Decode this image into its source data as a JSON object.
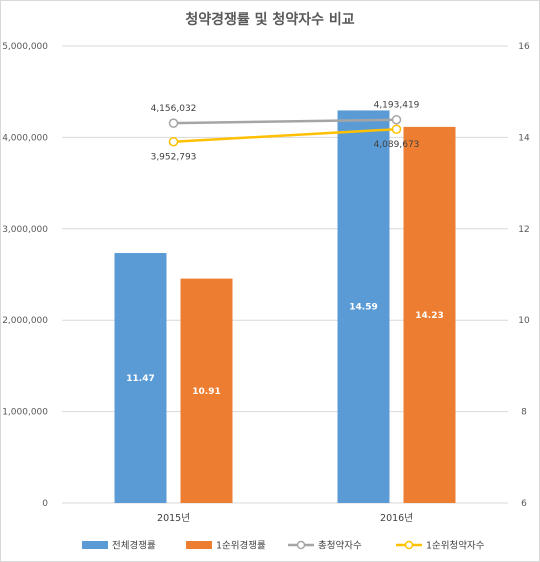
{
  "chart_data": {
    "type": "bar",
    "title": "청약경쟁률 및 청약자수 비교",
    "categories": [
      "2015년",
      "2016년"
    ],
    "y_left": {
      "ylim": [
        0,
        5000000
      ],
      "ticks": [
        0,
        1000000,
        2000000,
        3000000,
        4000000,
        5000000
      ],
      "tick_labels": [
        "0",
        "1,000,000",
        "2,000,000",
        "3,000,000",
        "4,000,000",
        "5,000,000"
      ]
    },
    "y_right": {
      "ylim": [
        6,
        16
      ],
      "ticks": [
        6,
        8,
        10,
        12,
        14,
        16
      ],
      "tick_labels": [
        "6",
        "8",
        "10",
        "12",
        "14",
        "16"
      ]
    },
    "bar_series": [
      {
        "name": "전체경쟁률",
        "axis": "right",
        "color": "#5b9bd5",
        "values": [
          11.47,
          14.59
        ],
        "labels": [
          "11.47",
          "14.59"
        ]
      },
      {
        "name": "1순위경쟁률",
        "axis": "right",
        "color": "#ed7d31",
        "values": [
          10.91,
          14.23
        ],
        "labels": [
          "10.91",
          "14.23"
        ]
      }
    ],
    "line_series": [
      {
        "name": "총청약자수",
        "axis": "left",
        "color": "#a5a5a5",
        "values": [
          4156032,
          4193419
        ],
        "labels": [
          "4,156,032",
          "4,193,419"
        ]
      },
      {
        "name": "1순위청약자수",
        "axis": "left",
        "color": "#ffc000",
        "values": [
          3952793,
          4089673
        ],
        "labels": [
          "3,952,793",
          "4,089,673"
        ]
      }
    ],
    "grid": true,
    "legend": "bottom"
  }
}
